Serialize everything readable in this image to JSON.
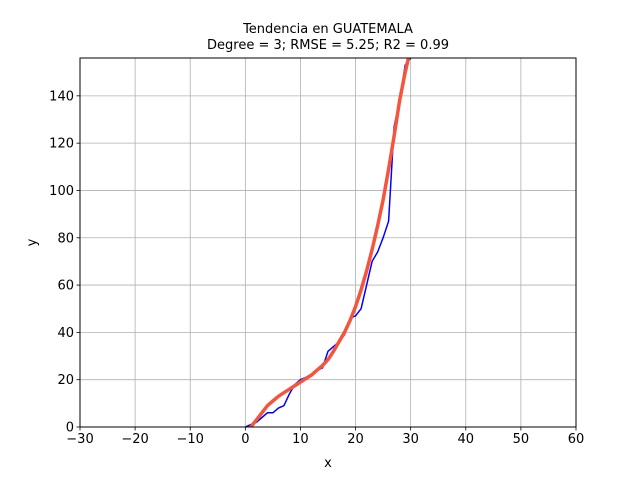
{
  "chart_data": {
    "type": "line",
    "title": "Tendencia en GUATEMALA",
    "subtitle": "Degree = 3; RMSE = 5.25; R2 = 0.99",
    "xlabel": "x",
    "ylabel": "y",
    "xlim": [
      -30,
      60
    ],
    "ylim": [
      0,
      156
    ],
    "xticks": [
      -30,
      -20,
      -10,
      0,
      10,
      20,
      30,
      40,
      50,
      60
    ],
    "yticks": [
      0,
      20,
      40,
      60,
      80,
      100,
      120,
      140
    ],
    "xtick_labels": [
      "−30",
      "−20",
      "−10",
      "0",
      "10",
      "20",
      "30",
      "40",
      "50",
      "60"
    ],
    "ytick_labels": [
      "0",
      "20",
      "40",
      "60",
      "80",
      "100",
      "120",
      "140"
    ],
    "grid": true,
    "series": [
      {
        "color": "#0000ff",
        "style": "data",
        "x": [
          0,
          1,
          2,
          3,
          4,
          5,
          6,
          7,
          8,
          9,
          10,
          11,
          12,
          13,
          14,
          15,
          16,
          17,
          18,
          19,
          20,
          21,
          22,
          23,
          24,
          25,
          26,
          27,
          28,
          29,
          30
        ],
        "y": [
          0,
          1,
          2,
          4,
          6,
          6,
          8,
          9,
          14,
          18,
          20,
          21,
          22,
          24,
          25,
          32,
          34,
          36,
          39,
          46,
          47,
          50,
          60,
          70,
          74,
          80,
          87,
          127,
          138,
          153,
          156
        ]
      },
      {
        "color": "#f4553c",
        "style": "fit",
        "x": [
          1,
          2,
          3,
          4,
          5,
          6,
          7,
          8,
          9,
          10,
          11,
          12,
          13,
          14,
          15,
          16,
          17,
          18,
          19,
          20,
          21,
          22,
          23,
          24,
          25,
          26,
          27,
          28,
          29,
          30
        ],
        "y": [
          0,
          3,
          6,
          9,
          11,
          13,
          14.5,
          16,
          17.5,
          19,
          20.5,
          22,
          24,
          26,
          28.5,
          32,
          36,
          40,
          45,
          51,
          58,
          66,
          75,
          85,
          96,
          109,
          123,
          138,
          150,
          160
        ]
      }
    ]
  }
}
